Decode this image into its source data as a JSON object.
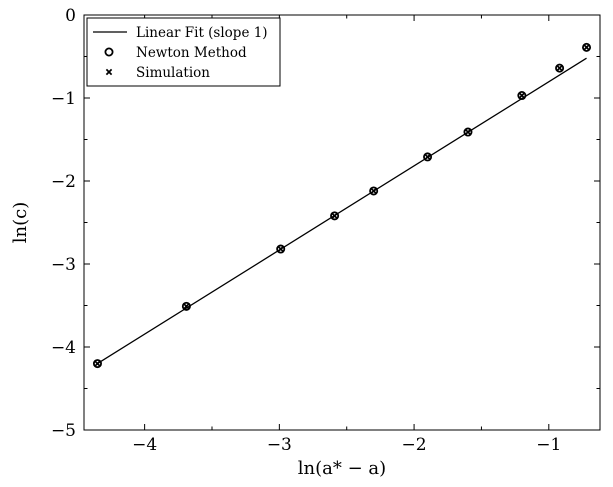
{
  "chart_data": {
    "type": "scatter",
    "xlabel": "ln(a* − a)",
    "ylabel": "ln(c)",
    "xlim": [
      -4.45,
      -0.62
    ],
    "ylim": [
      -5,
      0
    ],
    "x_ticks": [
      -4,
      -3,
      -2,
      -1
    ],
    "y_ticks": [
      0,
      -1,
      -2,
      -3,
      -4,
      -5
    ],
    "x_tick_labels": [
      "−4",
      "−3",
      "−2",
      "−1"
    ],
    "y_tick_labels": [
      "0",
      "−1",
      "−2",
      "−3",
      "−4",
      "−5"
    ],
    "grid": false,
    "legend_position": "top-left",
    "series": [
      {
        "name": "Linear Fit (slope 1)",
        "kind": "line",
        "color": "#000000",
        "x": [
          -4.35,
          -0.72
        ],
        "y": [
          -4.2,
          -0.52
        ]
      },
      {
        "name": "Newton Method",
        "kind": "scatter",
        "marker": "circle",
        "color": "#000000",
        "x": [
          -4.35,
          -3.69,
          -2.99,
          -2.59,
          -2.3,
          -1.9,
          -1.6,
          -1.2,
          -0.92,
          -0.72
        ],
        "y": [
          -4.2,
          -3.51,
          -2.82,
          -2.42,
          -2.12,
          -1.71,
          -1.41,
          -0.97,
          -0.64,
          -0.39
        ]
      },
      {
        "name": "Simulation",
        "kind": "scatter",
        "marker": "x",
        "color": "#000000",
        "x": [
          -4.35,
          -3.69,
          -2.99,
          -2.59,
          -2.3,
          -1.9,
          -1.6,
          -1.2,
          -0.92,
          -0.72
        ],
        "y": [
          -4.2,
          -3.51,
          -2.82,
          -2.42,
          -2.12,
          -1.71,
          -1.41,
          -0.97,
          -0.64,
          -0.39
        ]
      }
    ]
  }
}
